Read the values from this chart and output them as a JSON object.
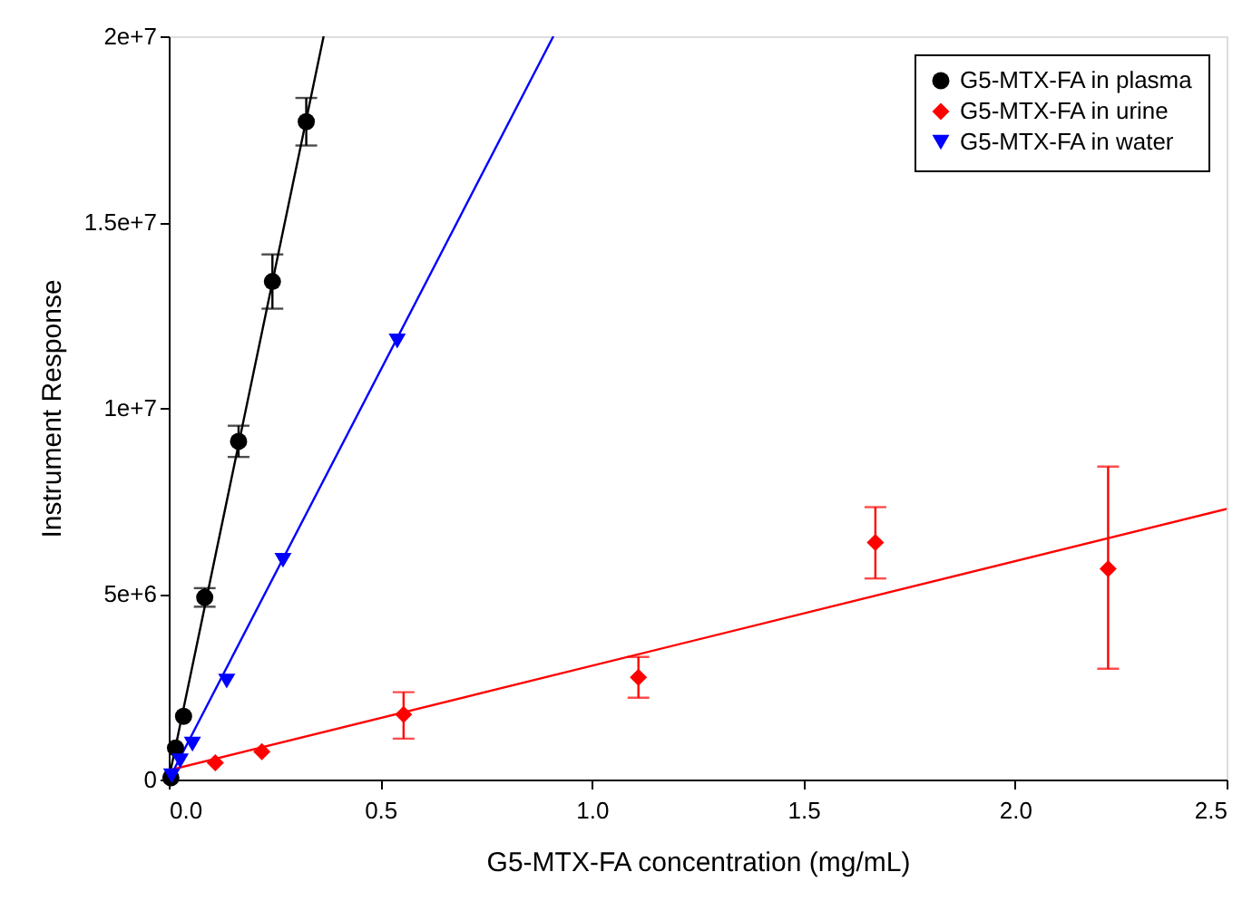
{
  "chart_data": {
    "type": "scatter",
    "xlabel": "G5-MTX-FA concentration (mg/mL)",
    "ylabel": "Instrument Response",
    "xlim": [
      0,
      2.5
    ],
    "ylim": [
      0,
      20000000
    ],
    "xticks": [
      {
        "value": 0,
        "label": "0.0"
      },
      0.5,
      {
        "value": 1,
        "label": "1.0"
      },
      1.5,
      {
        "value": 2,
        "label": "2.0"
      },
      2.5
    ],
    "yticks": [
      0,
      {
        "value": 5000000,
        "label": "5e+6"
      },
      {
        "value": 10000000,
        "label": "1e+7"
      },
      {
        "value": 15000000,
        "label": "1.5e+7"
      },
      {
        "value": 20000000,
        "label": "2e+7"
      }
    ],
    "grid": false,
    "legend": "top right",
    "series": [
      {
        "name": "G5-MTX-FA in plasma",
        "color": "#000000",
        "marker": "circle",
        "x": [
          0.005,
          0.016,
          0.035,
          0.085,
          0.165,
          0.245,
          0.325
        ],
        "values": [
          50000,
          850000,
          1700000,
          4900000,
          9100000,
          13400000,
          17700000
        ],
        "errors": [
          null,
          null,
          null,
          250000,
          420000,
          730000,
          640000
        ]
      },
      {
        "name": "G5-MTX-FA in urine",
        "color": "#ff0000",
        "marker": "diamond",
        "x": [
          0.11,
          0.22,
          0.555,
          1.11,
          1.67,
          2.22
        ],
        "values": [
          450000,
          750000,
          1750000,
          2750000,
          6380000,
          5670000
        ],
        "errors": [
          null,
          null,
          [
            1100000,
            2350000
          ],
          [
            2200000,
            3300000
          ],
          [
            5410000,
            7330000
          ],
          [
            2980000,
            8420000
          ]
        ]
      },
      {
        "name": "G5-MTX-FA in water",
        "color": "#0000ff",
        "marker": "triangle",
        "x": [
          0.007,
          0.027,
          0.056,
          0.137,
          0.27,
          0.54
        ],
        "values": [
          100000,
          500000,
          950000,
          2650000,
          5900000,
          11800000
        ]
      },
      {
        "color": "#000000",
        "type": "line",
        "line_style": "solid",
        "x": [
          0,
          0.366
        ],
        "values": [
          0,
          20000000
        ]
      },
      {
        "color": "#ff0000",
        "type": "line",
        "line_style": "solid",
        "x": [
          0,
          2.5
        ],
        "values": [
          250000,
          7280000
        ]
      },
      {
        "color": "#0000ff",
        "type": "line",
        "line_style": "solid",
        "x": [
          0,
          0.909
        ],
        "values": [
          0,
          20000000
        ]
      }
    ]
  }
}
